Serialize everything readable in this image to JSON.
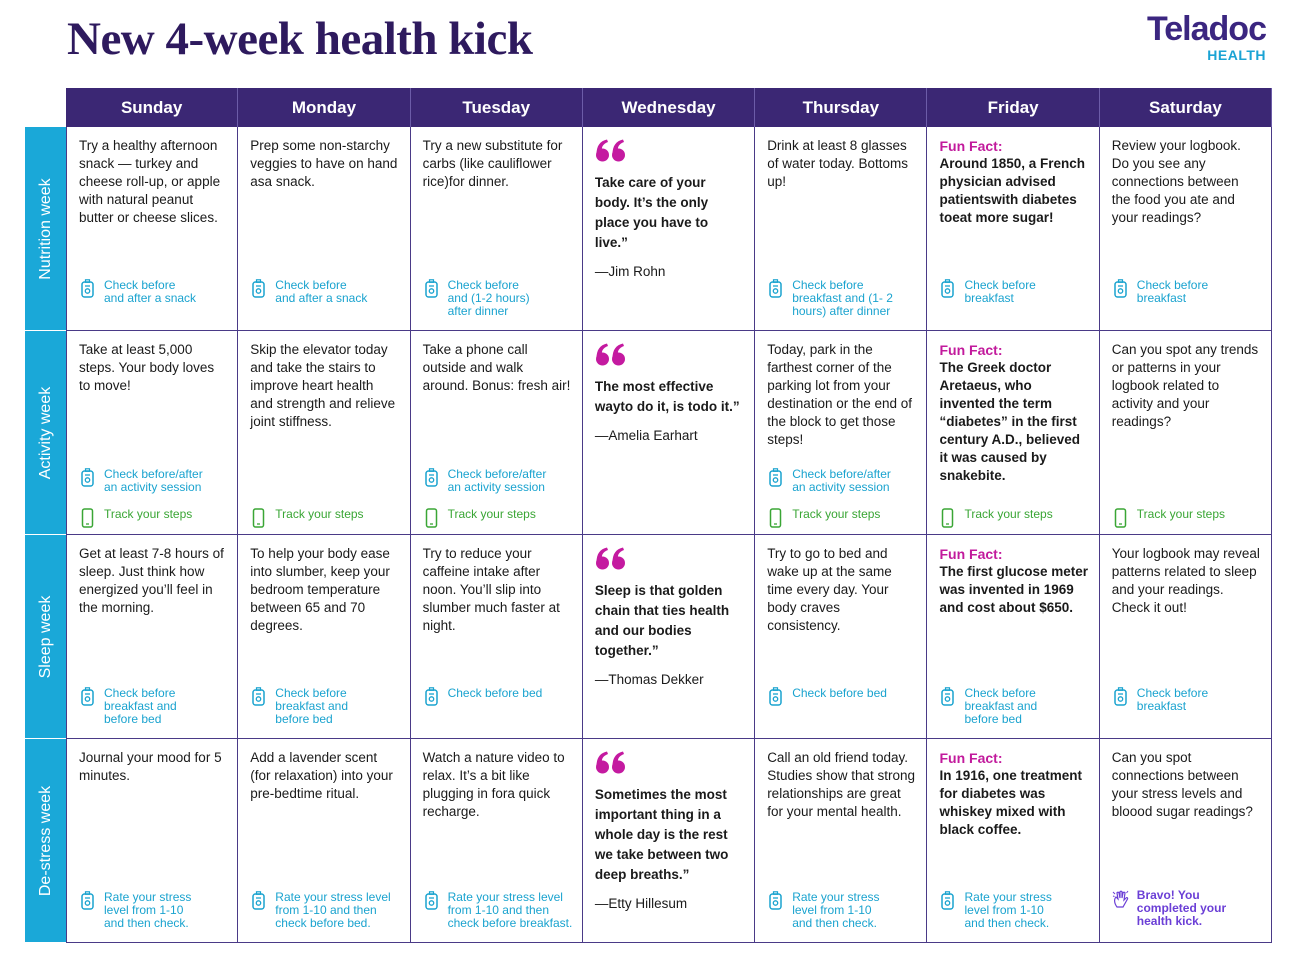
{
  "header": {
    "title": "New 4-week health kick",
    "logo": {
      "name": "Teladoc",
      "sub": "HEALTH"
    }
  },
  "days": [
    "Sunday",
    "Monday",
    "Tuesday",
    "Wednesday",
    "Thursday",
    "Friday",
    "Saturday"
  ],
  "weeks": [
    {
      "label": "Nutrition week",
      "cells": [
        {
          "text": "Try a healthy afternoon snack — turkey and cheese roll-up, or apple with natural peanut butter or cheese slices.",
          "check": "Check before\nand after a snack"
        },
        {
          "text": "Prep some non-starchy veggies to have on hand asa snack.",
          "check": "Check before\nand after a snack"
        },
        {
          "text": "Try a new substitute for carbs (like cauliflower rice)for dinner.",
          "check": "Check before\nand (1-2 hours)\nafter dinner"
        },
        {
          "quote": "Take care of your body. It’s the only place you have to live.”",
          "author": "—Jim Rohn"
        },
        {
          "text": "Drink at least 8 glasses of water today. Bottoms up!",
          "check": "Check before\nbreakfast and (1- 2\nhours) after dinner"
        },
        {
          "label": "Fun Fact:",
          "fact": "Around 1850, a French physician advised patientswith diabetes toeat more sugar!",
          "check": "Check before\nbreakfast"
        },
        {
          "text": "Review your logbook. Do you see any connections between the food you ate and your readings?",
          "check": "Check before\nbreakfast"
        }
      ]
    },
    {
      "label": "Activity week",
      "cells": [
        {
          "text": "Take at least 5,000 steps. Your body loves to move!",
          "check": "Check before/after\nan activity session",
          "steps": "Track your steps"
        },
        {
          "text": "Skip the elevator today and take the stairs to improve heart health and strength and relieve joint stiffness.",
          "steps": "Track your steps"
        },
        {
          "text": "Take a phone call outside and walk around. Bonus: fresh air!",
          "check": "Check before/after\nan activity session",
          "steps": "Track your steps"
        },
        {
          "quote": "The most effective wayto do it, is todo it.”",
          "author": "—Amelia Earhart"
        },
        {
          "text": "Today, park in the farthest corner of the parking lot from your destination or the end of the block to get those steps!",
          "check": "Check before/after\nan activity session",
          "steps": "Track your steps"
        },
        {
          "label": "Fun Fact:",
          "fact": "The Greek doctor Aretaeus, who invented the term “diabetes” in the first century A.D., believed it was caused by snakebite.",
          "steps": "Track your steps"
        },
        {
          "text": "Can you spot any trends or patterns in your logbook related to activity and your readings?",
          "steps": "Track your steps"
        }
      ]
    },
    {
      "label": "Sleep week",
      "cells": [
        {
          "text": "Get at least 7-8 hours of sleep. Just think how energized you’ll feel in the morning.",
          "check": "Check before\nbreakfast and\nbefore bed"
        },
        {
          "text": "To help your body ease into slumber, keep your bedroom temperature between 65 and 70 degrees.",
          "check": "Check before\nbreakfast and\nbefore bed"
        },
        {
          "text": "Try to reduce your caffeine intake after noon. You’ll slip into slumber much faster at night.",
          "check": "Check before bed"
        },
        {
          "quote": "Sleep is that golden chain that ties health and our bodies together.”",
          "author": "—Thomas Dekker"
        },
        {
          "text": "Try to go to bed and wake up at the same time every day. Your body craves consistency.",
          "check": "Check before bed"
        },
        {
          "label": "Fun Fact:",
          "fact": "The first glucose meter was invented in 1969 and cost about $650.",
          "check": "Check before\nbreakfast and\nbefore bed"
        },
        {
          "text": "Your logbook may reveal patterns related to sleep and your readings. Check it out!",
          "check": "Check before\nbreakfast"
        }
      ]
    },
    {
      "label": "De-stress week",
      "cells": [
        {
          "text": "Journal your mood for 5 minutes.",
          "check": "Rate your stress\nlevel from 1-10\nand then check."
        },
        {
          "text": "Add a lavender scent (for relaxation) into your pre-bedtime ritual.",
          "check": "Rate your stress level\nfrom 1-10 and then\ncheck before bed."
        },
        {
          "text": "Watch a nature video to relax. It’s a bit like plugging in fora quick recharge.",
          "check": "Rate your stress level\nfrom 1-10 and then\ncheck before breakfast."
        },
        {
          "quote": "Sometimes the most important thing in a whole day is the rest we take between two deep breaths.”",
          "author": "—Etty Hillesum"
        },
        {
          "text": "Call an old friend today. Studies show that strong relationships are great for your mental health.",
          "check": "Rate your stress\nlevel from 1-10\nand then check."
        },
        {
          "label": "Fun Fact:",
          "fact": "In 1916, one treatment for diabetes was whiskey mixed with black coffee.",
          "check": "Rate your stress\nlevel from 1-10\nand then check."
        },
        {
          "text": "Can you spot connections between your stress levels and bloood sugar readings?",
          "bravo": "Bravo! You\ncompleted your\nhealth kick."
        }
      ]
    }
  ]
}
